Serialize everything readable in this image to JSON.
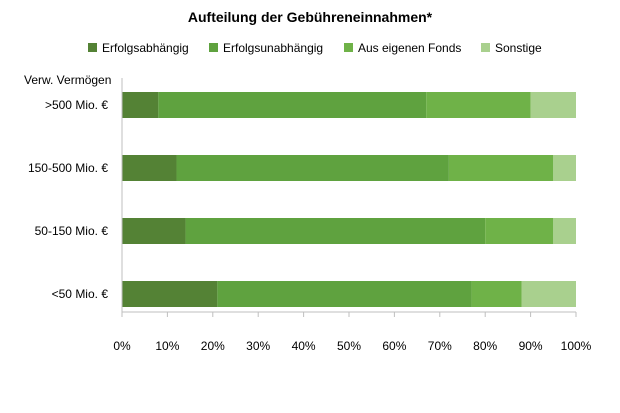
{
  "chart_data": {
    "type": "bar",
    "orientation": "horizontal",
    "stacked": true,
    "title": "Aufteilung der Gebühreneinnahmen*",
    "ylabel": "Verw. Vermögen",
    "xlabel": "",
    "xlim": [
      0,
      100
    ],
    "x_ticks": [
      "0%",
      "10%",
      "20%",
      "30%",
      "40%",
      "50%",
      "60%",
      "70%",
      "80%",
      "90%",
      "100%"
    ],
    "legend_position": "top",
    "grid": false,
    "categories": [
      ">500 Mio. €",
      "150-500 Mio. €",
      "50-150 Mio. €",
      "<50 Mio. €"
    ],
    "series": [
      {
        "name": "Erfolgsabhängig",
        "color": "#548235",
        "values": [
          8,
          12,
          14,
          21
        ]
      },
      {
        "name": "Erfolgsunabhängig",
        "color": "#5fa23f",
        "values": [
          59,
          60,
          66,
          56
        ]
      },
      {
        "name": "Aus eigenen Fonds",
        "color": "#6fb248",
        "values": [
          23,
          23,
          15,
          11
        ]
      },
      {
        "name": "Sonstige",
        "color": "#a9d08e",
        "values": [
          10,
          5,
          5,
          12
        ]
      }
    ]
  }
}
